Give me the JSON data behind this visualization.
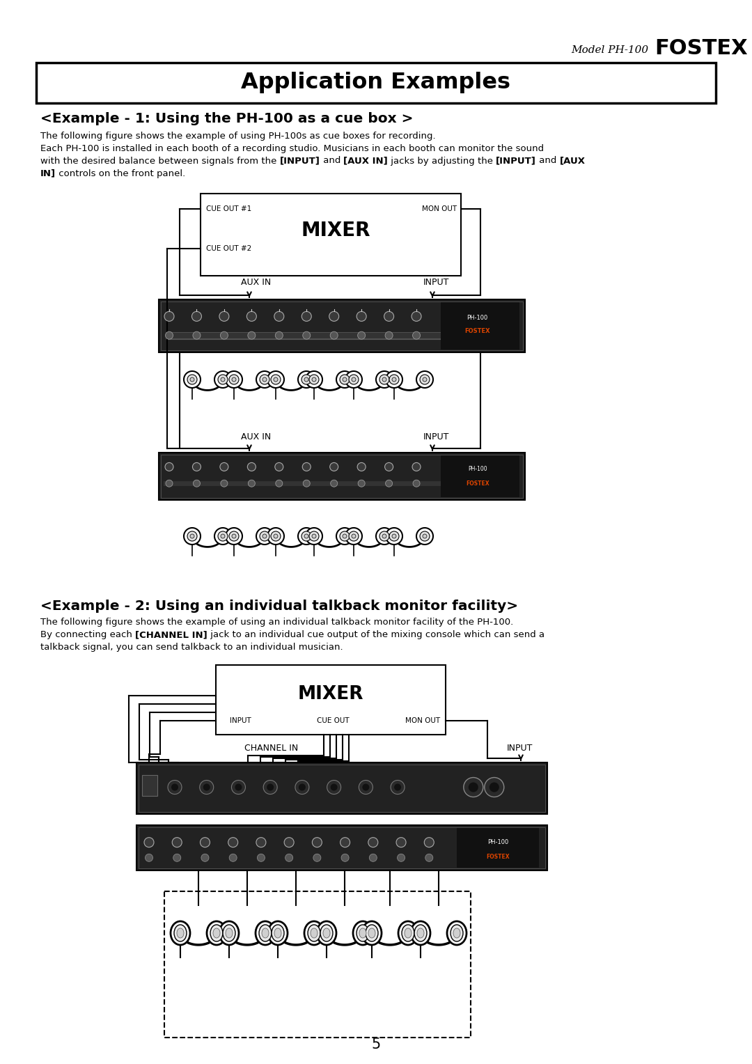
{
  "page_title": "Application Examples",
  "header_text": "Model PH-100",
  "header_brand": "FOSTEX",
  "ex1_title": "<Example - 1: Using the PH-100 as a cue box >",
  "ex1_line1": "The following figure shows the example of using PH-100s as cue boxes for recording.",
  "ex1_line2": "Each PH-100 is installed in each booth of a recording studio. Musicians in each booth can monitor the sound",
  "ex1_line3_plain1": "with the desired balance between signals from the ",
  "ex1_line3_bold1": "[INPUT]",
  "ex1_line3_plain2": " and ",
  "ex1_line3_bold2": "[AUX IN]",
  "ex1_line3_plain3": " jacks by adjusting the ",
  "ex1_line3_bold3": "[INPUT]",
  "ex1_line3_plain4": " and ",
  "ex1_line3_bold4": "[AUX",
  "ex1_line4_bold": "IN]",
  "ex1_line4_plain": " controls on the front panel.",
  "ex2_title": "<Example - 2: Using an individual talkback monitor facility>",
  "ex2_line1": "The following figure shows the example of using an individual talkback monitor facility of the PH-100.",
  "ex2_line2_plain1": "By connecting each ",
  "ex2_line2_bold1": "[CHANNEL IN]",
  "ex2_line2_plain2": " jack to an individual cue output of the mixing console which can send a",
  "ex2_line3": "talkback signal, you can send talkback to an individual musician.",
  "page_num": "5",
  "bg": "#ffffff",
  "fg": "#000000",
  "rack_dark": "#222222",
  "rack_mid": "#444444",
  "rack_light": "#888888"
}
